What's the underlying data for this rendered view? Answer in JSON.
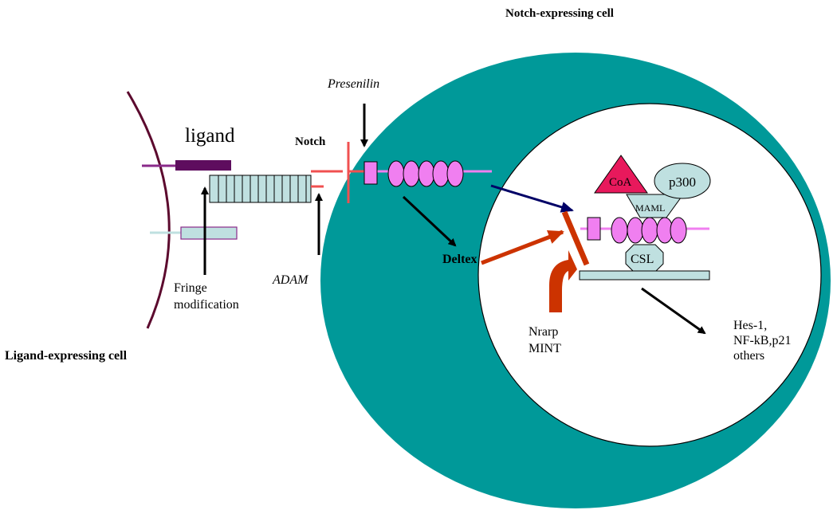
{
  "labels": {
    "notch_expressing_cell": "Notch-expressing cell",
    "ligand_expressing_cell": "Ligand-expressing cell",
    "ligand": "ligand",
    "notch": "Notch",
    "presenilin": "Presenilin",
    "adam": "ADAM",
    "fringe_line1": "Fringe",
    "fringe_line2": "modification",
    "deltex": "Deltex",
    "nrarp": "Nrarp",
    "mint": "MINT",
    "coa": "CoA",
    "p300": "p300",
    "maml": "MAML",
    "csl": "CSL",
    "targets_line1": "Hes-1,",
    "targets_line2": "NF-kB,p21",
    "targets_line3": "others"
  },
  "colors": {
    "cell_body": "#009999",
    "nucleus": "#ffffff",
    "ligand_membrane": "#5c0a2e",
    "ligand_bar": "#5e0d5e",
    "pale_blue": "#bfe0e0",
    "notch_red": "#f05050",
    "pink": "#f07ff0",
    "coa_red": "#e8195c",
    "inhibitor_red": "#cc3300",
    "navy": "#000066",
    "black": "#000000"
  }
}
